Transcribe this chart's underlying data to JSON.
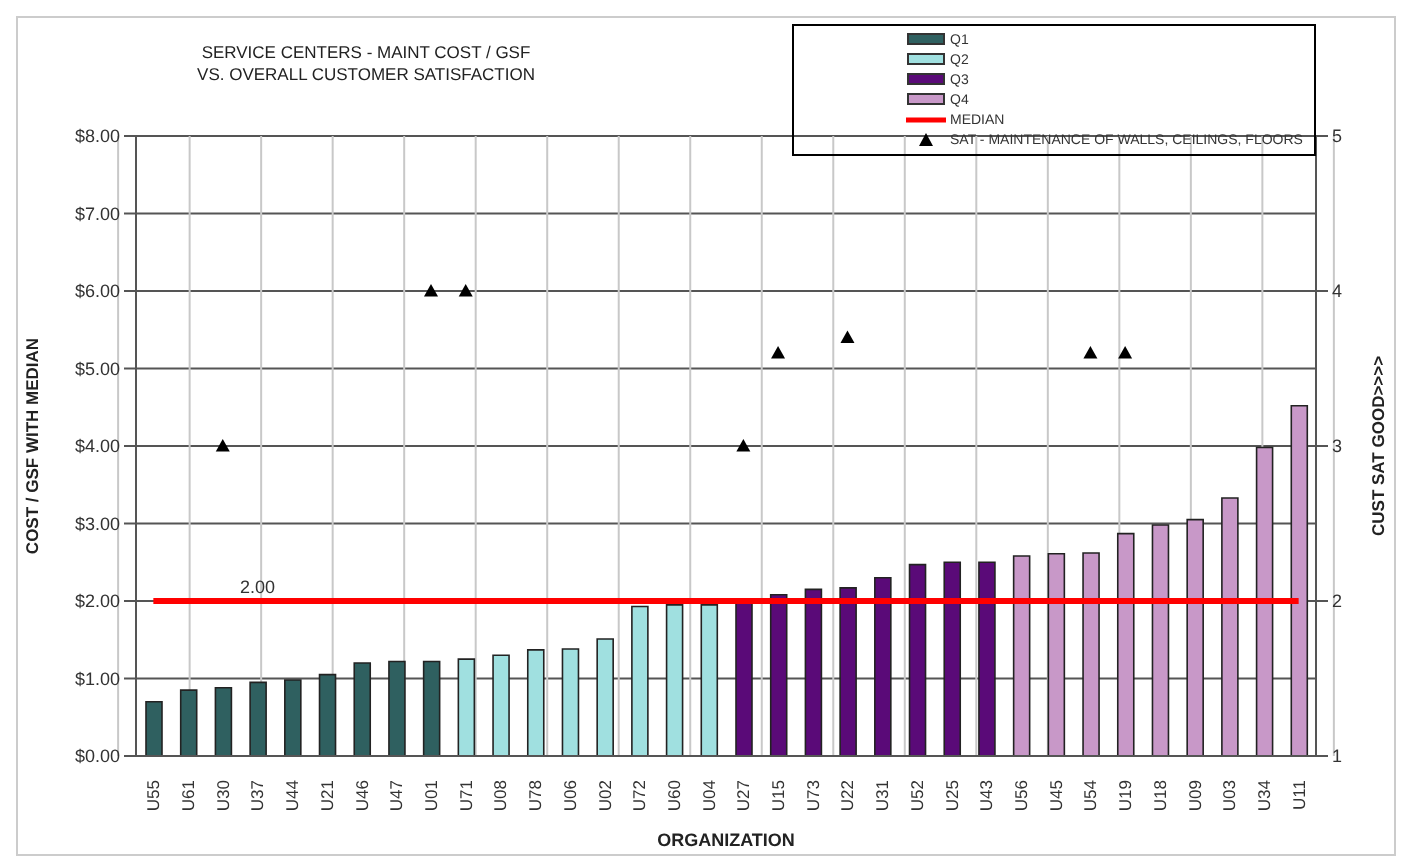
{
  "chart_data": {
    "type": "bar",
    "title": "SERVICE CENTERS - MAINT COST /  GSF",
    "subtitle": "VS. OVERALL CUSTOMER SATISFACTION",
    "xlabel": "ORGANIZATION",
    "ylabel": "COST / GSF WITH MEDIAN",
    "y2label": "CUST SAT GOOD>>>>",
    "categories": [
      "U55",
      "U61",
      "U30",
      "U37",
      "U44",
      "U21",
      "U46",
      "U47",
      "U01",
      "U71",
      "U08",
      "U78",
      "U06",
      "U02",
      "U72",
      "U60",
      "U04",
      "U27",
      "U15",
      "U73",
      "U22",
      "U31",
      "U52",
      "U25",
      "U43",
      "U56",
      "U45",
      "U54",
      "U19",
      "U18",
      "U09",
      "U03",
      "U34",
      "U11"
    ],
    "series": [
      {
        "name": "Q1",
        "color": "#2f6060",
        "values": [
          0.7,
          0.85,
          0.88,
          0.95,
          0.98,
          1.05,
          1.2,
          1.22,
          1.22,
          null,
          null,
          null,
          null,
          null,
          null,
          null,
          null,
          null,
          null,
          null,
          null,
          null,
          null,
          null,
          null,
          null,
          null,
          null,
          null,
          null,
          null,
          null,
          null,
          null
        ]
      },
      {
        "name": "Q2",
        "color": "#a0e0e0",
        "values": [
          null,
          null,
          null,
          null,
          null,
          null,
          null,
          null,
          null,
          1.25,
          1.3,
          1.37,
          1.38,
          1.51,
          1.93,
          1.95,
          1.95,
          null,
          null,
          null,
          null,
          null,
          null,
          null,
          null,
          null,
          null,
          null,
          null,
          null,
          null,
          null,
          null,
          null
        ]
      },
      {
        "name": "Q3",
        "color": "#5a0a78",
        "values": [
          null,
          null,
          null,
          null,
          null,
          null,
          null,
          null,
          null,
          null,
          null,
          null,
          null,
          null,
          null,
          null,
          null,
          2.0,
          2.08,
          2.15,
          2.17,
          2.3,
          2.47,
          2.5,
          2.5,
          null,
          null,
          null,
          null,
          null,
          null,
          null,
          null,
          null
        ]
      },
      {
        "name": "Q4",
        "color": "#c898c8",
        "values": [
          null,
          null,
          null,
          null,
          null,
          null,
          null,
          null,
          null,
          null,
          null,
          null,
          null,
          null,
          null,
          null,
          null,
          null,
          null,
          null,
          null,
          null,
          null,
          null,
          null,
          2.58,
          2.61,
          2.62,
          2.87,
          2.98,
          3.05,
          3.33,
          3.98,
          4.52
        ]
      },
      {
        "name": "MEDIAN",
        "type": "line",
        "color": "#ff0000",
        "marker": "none",
        "values": [
          2,
          2,
          2,
          2,
          2,
          2,
          2,
          2,
          2,
          2,
          2,
          2,
          2,
          2,
          2,
          2,
          2,
          2,
          2,
          2,
          2,
          2,
          2,
          2,
          2,
          2,
          2,
          2,
          2,
          2,
          2,
          2,
          2,
          2
        ],
        "value_labels": [
          null,
          null,
          null,
          "2.00",
          null,
          null,
          null,
          null,
          null,
          null,
          null,
          null,
          null,
          null,
          null,
          null,
          null,
          null,
          null,
          null,
          null,
          null,
          null,
          null,
          null,
          null,
          null,
          null,
          null,
          null,
          null,
          null,
          null,
          null
        ]
      },
      {
        "name": "SAT - MAINTENANCE OF WALLS, CEILINGS, FLOORS",
        "type": "scatter",
        "axis": "y2",
        "color": "#000000",
        "marker": "triangle",
        "values": [
          null,
          null,
          3,
          null,
          null,
          null,
          null,
          null,
          4,
          4,
          null,
          null,
          null,
          null,
          null,
          null,
          null,
          3,
          3.6,
          null,
          3.7,
          null,
          null,
          null,
          null,
          null,
          null,
          3.6,
          3.6,
          null,
          null,
          null,
          null,
          null
        ]
      }
    ],
    "ylim": [
      0,
      8
    ],
    "yticks": [
      {
        "value": 0,
        "label": "$0.00"
      },
      {
        "value": 1,
        "label": "$1.00"
      },
      {
        "value": 2,
        "label": "$2.00"
      },
      {
        "value": 3,
        "label": "$3.00"
      },
      {
        "value": 4,
        "label": "$4.00"
      },
      {
        "value": 5,
        "label": "$5.00"
      },
      {
        "value": 6,
        "label": "$6.00"
      },
      {
        "value": 7,
        "label": "$7.00"
      },
      {
        "value": 8,
        "label": "$8.00"
      }
    ],
    "y2lim": [
      1,
      5
    ],
    "y2ticks": [
      1,
      2,
      3,
      4,
      5
    ],
    "grid": true,
    "legend": "top right"
  }
}
